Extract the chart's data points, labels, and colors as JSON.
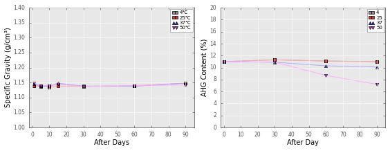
{
  "left": {
    "xlabel": "After Days",
    "ylabel": "Specific Gravity (g/cm³)",
    "xlim": [
      -2,
      95
    ],
    "ylim": [
      1.0,
      1.4
    ],
    "yticks": [
      1.0,
      1.05,
      1.1,
      1.15,
      1.2,
      1.25,
      1.3,
      1.35,
      1.4
    ],
    "xticks": [
      0,
      10,
      20,
      30,
      40,
      50,
      60,
      70,
      80,
      90
    ],
    "series": [
      {
        "label": "4℃",
        "color": "#888888",
        "linecolor": "#aaaaaa",
        "marker": "s",
        "markersize": 3,
        "x": [
          1,
          5,
          10,
          15,
          30,
          60,
          90
        ],
        "y": [
          1.14,
          1.137,
          1.138,
          1.145,
          1.138,
          1.138,
          1.148
        ]
      },
      {
        "label": "25℃",
        "color": "#cc3333",
        "linecolor": "#ffaaaa",
        "marker": "s",
        "markersize": 3,
        "x": [
          1,
          5,
          10,
          15,
          30,
          60,
          90
        ],
        "y": [
          1.138,
          1.14,
          1.135,
          1.138,
          1.137,
          1.14,
          1.148
        ]
      },
      {
        "label": "37℃",
        "color": "#3333bb",
        "linecolor": "#aaaaff",
        "marker": "^",
        "markersize": 3,
        "x": [
          1,
          5,
          10,
          15,
          30,
          60,
          90
        ],
        "y": [
          1.145,
          1.138,
          1.138,
          1.148,
          1.138,
          1.138,
          1.148
        ]
      },
      {
        "label": "50℃",
        "color": "#cc33cc",
        "linecolor": "#ffaaff",
        "marker": "v",
        "markersize": 3,
        "x": [
          1,
          5,
          10,
          15,
          30,
          60,
          90
        ],
        "y": [
          1.148,
          1.14,
          1.14,
          1.145,
          1.137,
          1.14,
          1.142
        ]
      }
    ]
  },
  "right": {
    "xlabel": "After Day",
    "ylabel": "AHG Content (%)",
    "xlim": [
      -2,
      95
    ],
    "ylim": [
      0,
      20
    ],
    "yticks": [
      0,
      2,
      4,
      6,
      8,
      10,
      12,
      14,
      16,
      18,
      20
    ],
    "xticks": [
      0,
      10,
      20,
      30,
      40,
      50,
      60,
      70,
      80,
      90
    ],
    "series": [
      {
        "label": "4",
        "color": "#888888",
        "linecolor": "#aaaaaa",
        "marker": "s",
        "markersize": 3,
        "x": [
          0,
          30,
          60,
          90
        ],
        "y": [
          11.0,
          11.3,
          11.1,
          11.0
        ]
      },
      {
        "label": "25",
        "color": "#cc3333",
        "linecolor": "#ffaaaa",
        "marker": "s",
        "markersize": 3,
        "x": [
          0,
          30,
          60,
          90
        ],
        "y": [
          11.0,
          11.3,
          11.1,
          11.0
        ]
      },
      {
        "label": "37",
        "color": "#3333bb",
        "linecolor": "#aaaaff",
        "marker": "^",
        "markersize": 3,
        "x": [
          0,
          30,
          60,
          90
        ],
        "y": [
          11.0,
          10.9,
          10.3,
          10.1
        ]
      },
      {
        "label": "50",
        "color": "#cc33cc",
        "linecolor": "#ffaaff",
        "marker": "v",
        "markersize": 3,
        "x": [
          0,
          30,
          60,
          90
        ],
        "y": [
          11.0,
          10.9,
          8.7,
          7.2
        ]
      }
    ]
  },
  "bg_color": "#e8e8e8",
  "fig_bg": "#f0f0f0"
}
